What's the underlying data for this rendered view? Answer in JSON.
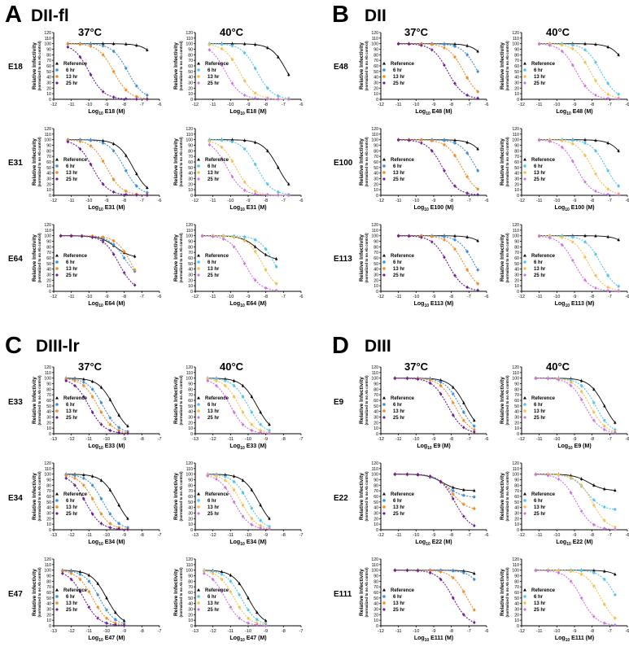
{
  "colors": {
    "reference": "#000000",
    "h6": "#3f8fd8",
    "h13": "#f28c28",
    "h25": "#6a1a9a",
    "h6_40": "#55c4ee",
    "h13_40": "#f5c050",
    "h25_40": "#cc70e6"
  },
  "ylabel": "Relative Infectivity",
  "ylabel_sub": "(normalized to no Ab control)",
  "legend": {
    "reference": "Reference",
    "h6": "6 hr",
    "h13": "13 hr",
    "h25": "25 hr"
  },
  "panels": [
    {
      "letter": "A",
      "title": "DII-fl",
      "temps": [
        "37°C",
        "40°C"
      ],
      "xmin": -12,
      "xmax": -6,
      "ticks": [
        -12,
        -11,
        -10,
        -9,
        -8,
        -7,
        -6
      ],
      "ab": [
        "E18",
        "E31",
        "E64"
      ]
    },
    {
      "letter": "B",
      "title": "DII",
      "temps": [
        "37°C",
        "40°C"
      ],
      "xmin": -12,
      "xmax": -6,
      "ticks": [
        -12,
        -11,
        -10,
        -9,
        -8,
        -7,
        -6
      ],
      "ab": [
        "E48",
        "E100",
        "E113"
      ]
    },
    {
      "letter": "C",
      "title": "DIII-lr",
      "temps": [
        "37°C",
        "40°C"
      ],
      "xmin": -13,
      "xmax": -7,
      "ticks": [
        -13,
        -12,
        -11,
        -10,
        -9,
        -8,
        -7
      ],
      "ab": [
        "E33",
        "E34",
        "E47"
      ]
    },
    {
      "letter": "D",
      "title": "DIII",
      "temps": [
        "37°C",
        "40°C"
      ],
      "xmin": -12,
      "xmax": -6,
      "ticks": [
        -12,
        -11,
        -10,
        -9,
        -8,
        -7,
        -6
      ],
      "ab": [
        "E9",
        "E22",
        "E111"
      ]
    }
  ],
  "chart_data": {
    "type": "scatter",
    "ylim": [
      0,
      120
    ],
    "yticks": [
      0,
      10,
      20,
      30,
      40,
      50,
      60,
      70,
      80,
      90,
      100,
      110,
      120
    ],
    "ylabel": "Relative Infectivity (normalized to no Ab control)",
    "series_names": [
      "Reference",
      "6 hr",
      "13 hr",
      "25 hr"
    ],
    "note": "Dose-response fits: y = bottom + (100-bottom)/(1+10^(x-logIC50)); params per series [bottom, logIC50]",
    "charts": {
      "E18": {
        "x": [
          -11.2,
          -10.5,
          -9.9,
          -9.2,
          -8.6,
          -7.9,
          -7.3,
          -6.7
        ],
        "t37": {
          "ref": [
            0,
            -5.8
          ],
          "h6": [
            0,
            -7.8
          ],
          "h13": [
            0,
            -8.6
          ],
          "h25": [
            0,
            -10.0
          ]
        },
        "t40": {
          "ref": [
            0,
            -6.8
          ],
          "h6": [
            0,
            -8.5
          ],
          "h13": [
            0,
            -9.5
          ],
          "h25": [
            0,
            -10.3
          ]
        }
      },
      "E31": {
        "x": [
          -11.2,
          -10.5,
          -9.9,
          -9.2,
          -8.6,
          -7.9,
          -7.3,
          -6.7
        ],
        "t37": {
          "ref": [
            0,
            -7.5
          ],
          "h6": [
            0,
            -8.0
          ],
          "h13": [
            0,
            -9.0
          ],
          "h25": [
            0,
            -9.8
          ]
        },
        "t40": {
          "ref": [
            0,
            -7.3
          ],
          "h6": [
            0,
            -8.5
          ],
          "h13": [
            0,
            -9.7
          ],
          "h25": [
            0,
            -10.2
          ]
        }
      },
      "E64": {
        "x": [
          -11.6,
          -11.0,
          -10.4,
          -9.8,
          -9.2,
          -8.6,
          -8.0,
          -7.4
        ],
        "t37": {
          "ref": [
            60,
            -8.5
          ],
          "h6": [
            20,
            -8.0
          ],
          "h13": [
            0,
            -7.6
          ],
          "h25": [
            0,
            -8.3
          ]
        },
        "t40": {
          "ref": [
            55,
            -8.5
          ],
          "h6": [
            0,
            -7.5
          ],
          "h13": [
            0,
            -8.2
          ],
          "h25": [
            0,
            -9.2
          ]
        }
      },
      "E48": {
        "x": [
          -11.0,
          -10.4,
          -9.7,
          -9.1,
          -8.4,
          -7.8,
          -7.1,
          -6.5
        ],
        "t37": {
          "ref": [
            0,
            -5.7
          ],
          "h6": [
            0,
            -6.5
          ],
          "h13": [
            0,
            -7.3
          ],
          "h25": [
            0,
            -8.2
          ]
        },
        "t40": {
          "ref": [
            0,
            -5.9
          ],
          "h6": [
            0,
            -7.5
          ],
          "h13": [
            0,
            -8.1
          ],
          "h25": [
            0,
            -8.9
          ]
        }
      },
      "E100": {
        "x": [
          -11.0,
          -10.4,
          -9.7,
          -9.1,
          -8.4,
          -7.8,
          -7.1,
          -6.5
        ],
        "t37": {
          "ref": [
            0,
            -5.8
          ],
          "h6": [
            0,
            -6.6
          ],
          "h13": [
            0,
            -7.4
          ],
          "h25": [
            0,
            -8.5
          ]
        },
        "t40": {
          "ref": [
            0,
            -5.9
          ],
          "h6": [
            0,
            -7.2
          ],
          "h13": [
            0,
            -8.0
          ],
          "h25": [
            0,
            -8.9
          ]
        }
      },
      "E113": {
        "x": [
          -11.0,
          -10.4,
          -9.7,
          -9.1,
          -8.4,
          -7.8,
          -7.1,
          -6.5
        ],
        "t37": {
          "ref": [
            0,
            -5.5
          ],
          "h6": [
            0,
            -6.7
          ],
          "h13": [
            0,
            -7.3
          ],
          "h25": [
            0,
            -8.2
          ]
        },
        "t40": {
          "ref": [
            0,
            -5.4
          ],
          "h6": [
            0,
            -7.5
          ],
          "h13": [
            0,
            -8.2
          ],
          "h25": [
            0,
            -9.0
          ]
        }
      },
      "E33": {
        "x": [
          -12.3,
          -11.8,
          -11.3,
          -10.8,
          -10.3,
          -9.8,
          -9.3,
          -8.8
        ],
        "t37": {
          "ref": [
            0,
            -9.6
          ],
          "h6": [
            0,
            -10.2
          ],
          "h13": [
            0,
            -10.5
          ],
          "h25": [
            0,
            -11.0
          ]
        },
        "t40": {
          "ref": [
            0,
            -9.5
          ],
          "h6": [
            0,
            -10.0
          ],
          "h13": [
            0,
            -10.5
          ],
          "h25": [
            0,
            -11.0
          ]
        }
      },
      "E34": {
        "x": [
          -12.3,
          -11.8,
          -11.3,
          -10.8,
          -10.3,
          -9.8,
          -9.3,
          -8.8
        ],
        "t37": {
          "ref": [
            0,
            -9.4
          ],
          "h6": [
            0,
            -10.2
          ],
          "h13": [
            0,
            -10.7
          ],
          "h25": [
            0,
            -11.2
          ]
        },
        "t40": {
          "ref": [
            0,
            -9.4
          ],
          "h6": [
            0,
            -10.0
          ],
          "h13": [
            0,
            -10.4
          ],
          "h25": [
            0,
            -10.8
          ]
        }
      },
      "E47": {
        "x": [
          -12.5,
          -12.0,
          -11.5,
          -11.0,
          -10.5,
          -10.0,
          -9.5,
          -9.0
        ],
        "t37": {
          "ref": [
            0,
            -10.0
          ],
          "h6": [
            0,
            -10.4
          ],
          "h13": [
            0,
            -10.8
          ],
          "h25": [
            0,
            -11.3
          ]
        },
        "t40": {
          "ref": [
            0,
            -10.0
          ],
          "h6": [
            0,
            -10.4
          ],
          "h13": [
            0,
            -10.8
          ],
          "h25": [
            0,
            -11.3
          ]
        }
      },
      "E9": {
        "x": [
          -11.2,
          -10.5,
          -9.9,
          -9.2,
          -8.6,
          -7.9,
          -7.3,
          -6.7
        ],
        "t37": {
          "ref": [
            0,
            -7.2
          ],
          "h6": [
            0,
            -7.5
          ],
          "h13": [
            0,
            -7.8
          ],
          "h25": [
            0,
            -8.2
          ]
        },
        "t40": {
          "ref": [
            0,
            -7.3
          ],
          "h6": [
            0,
            -7.8
          ],
          "h13": [
            0,
            -8.1
          ],
          "h25": [
            0,
            -8.4
          ]
        }
      },
      "E22": {
        "x": [
          -11.2,
          -10.5,
          -9.9,
          -9.2,
          -8.6,
          -7.9,
          -7.3,
          -6.7
        ],
        "t37": {
          "ref": [
            70,
            -8.5
          ],
          "h6": [
            58,
            -8.3
          ],
          "h13": [
            35,
            -8.0
          ],
          "h25": [
            0,
            -7.8
          ]
        },
        "t40": {
          "ref": [
            70,
            -8.2
          ],
          "h6": [
            35,
            -8.3
          ],
          "h13": [
            0,
            -8.0
          ],
          "h25": [
            0,
            -8.9
          ]
        }
      },
      "E111": {
        "x": [
          -11.2,
          -10.5,
          -9.9,
          -9.2,
          -8.6,
          -7.9,
          -7.3,
          -6.7
        ],
        "t37": {
          "ref": [
            0,
            -5.5
          ],
          "h6": [
            0,
            -6.0
          ],
          "h13": [
            0,
            -7.1
          ],
          "h25": [
            0,
            -7.9
          ]
        },
        "t40": {
          "ref": [
            0,
            -5.6
          ],
          "h6": [
            0,
            -6.6
          ],
          "h13": [
            0,
            -7.5
          ],
          "h25": [
            0,
            -8.6
          ]
        }
      }
    }
  }
}
